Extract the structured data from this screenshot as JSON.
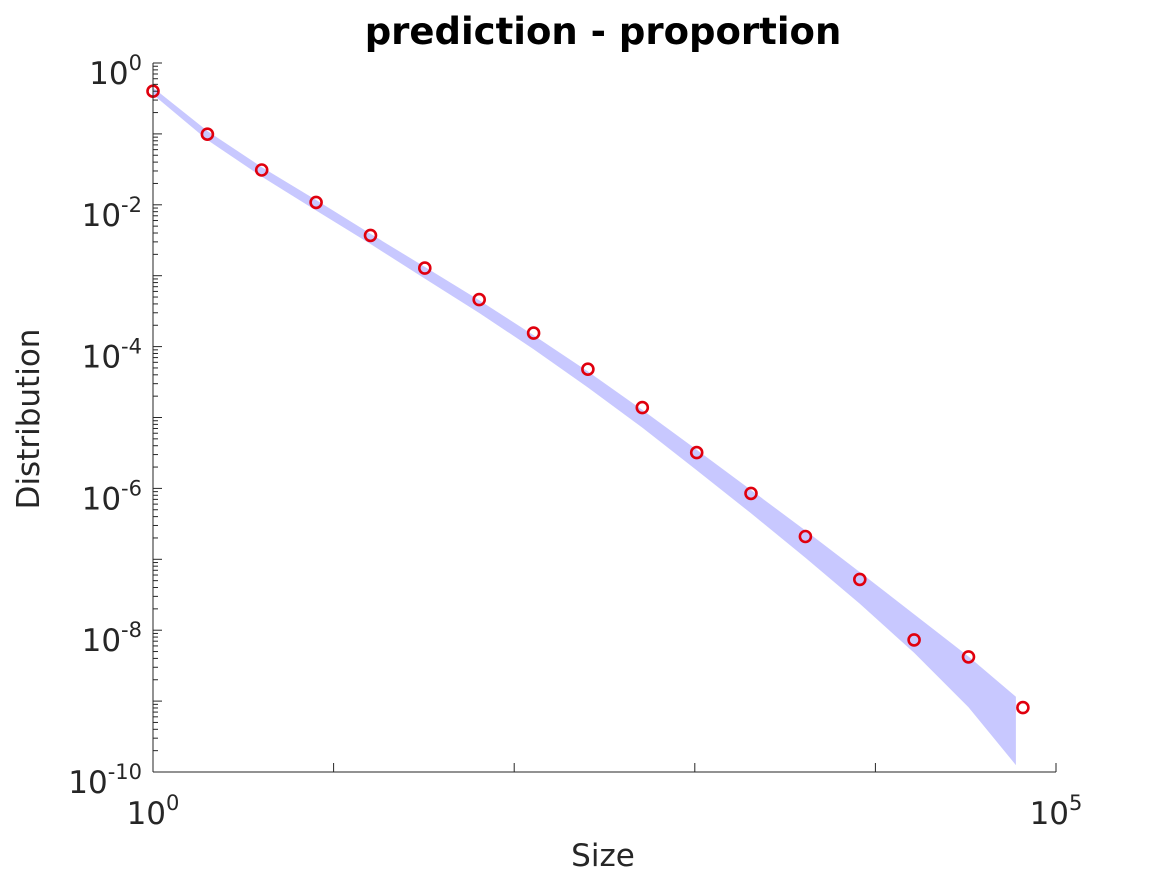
{
  "chart_data": {
    "type": "scatter",
    "title": "prediction - proportion",
    "xlabel": "Size",
    "ylabel": "Distribution",
    "xscale": "log",
    "yscale": "log",
    "xlim": [
      1,
      100000
    ],
    "ylim": [
      1e-10,
      1
    ],
    "grid": false,
    "x_tick_labels": [
      {
        "base": "10",
        "exp": "0"
      },
      {
        "base": "10",
        "exp": "5"
      }
    ],
    "y_tick_labels": [
      {
        "base": "10",
        "exp": "0"
      },
      {
        "base": "10",
        "exp": "-2"
      },
      {
        "base": "10",
        "exp": "-4"
      },
      {
        "base": "10",
        "exp": "-6"
      },
      {
        "base": "10",
        "exp": "-8"
      },
      {
        "base": "10",
        "exp": "-10"
      }
    ],
    "series": [
      {
        "type": "scatter",
        "marker": "circle-open",
        "color": "#e0000e",
        "x": [
          1,
          2,
          4,
          8,
          16,
          32,
          64,
          128,
          256,
          512,
          1024,
          2048,
          4096,
          8192,
          16384,
          32768,
          65536
        ],
        "y": [
          0.4,
          0.099,
          0.031,
          0.0108,
          0.0037,
          0.00128,
          0.00046,
          0.000155,
          4.8e-05,
          1.38e-05,
          3.2e-06,
          8.5e-07,
          2.1e-07,
          5.2e-08,
          7.3e-09,
          4.2e-09,
          8.1e-10
        ]
      },
      {
        "type": "band",
        "color": "#c8c8ff",
        "x": [
          1,
          2,
          4,
          8,
          16,
          32,
          64,
          128,
          256,
          512,
          1024,
          2048,
          4096,
          8192,
          16384,
          32768,
          60000
        ],
        "upper": [
          0.45,
          0.11,
          0.034,
          0.0117,
          0.0039,
          0.00133,
          0.00045,
          0.000145,
          4.45e-05,
          1.28e-05,
          3.5e-06,
          9.5e-07,
          2.55e-07,
          6.6e-08,
          1.68e-08,
          4.25e-09,
          1.15e-09
        ],
        "lower": [
          0.36,
          0.082,
          0.025,
          0.0083,
          0.0028,
          0.00091,
          0.000298,
          9.2e-05,
          2.65e-05,
          7.2e-06,
          1.8e-06,
          4.45e-07,
          1.05e-07,
          2.36e-08,
          4.8e-09,
          8.2e-10,
          1.25e-10
        ]
      }
    ]
  }
}
